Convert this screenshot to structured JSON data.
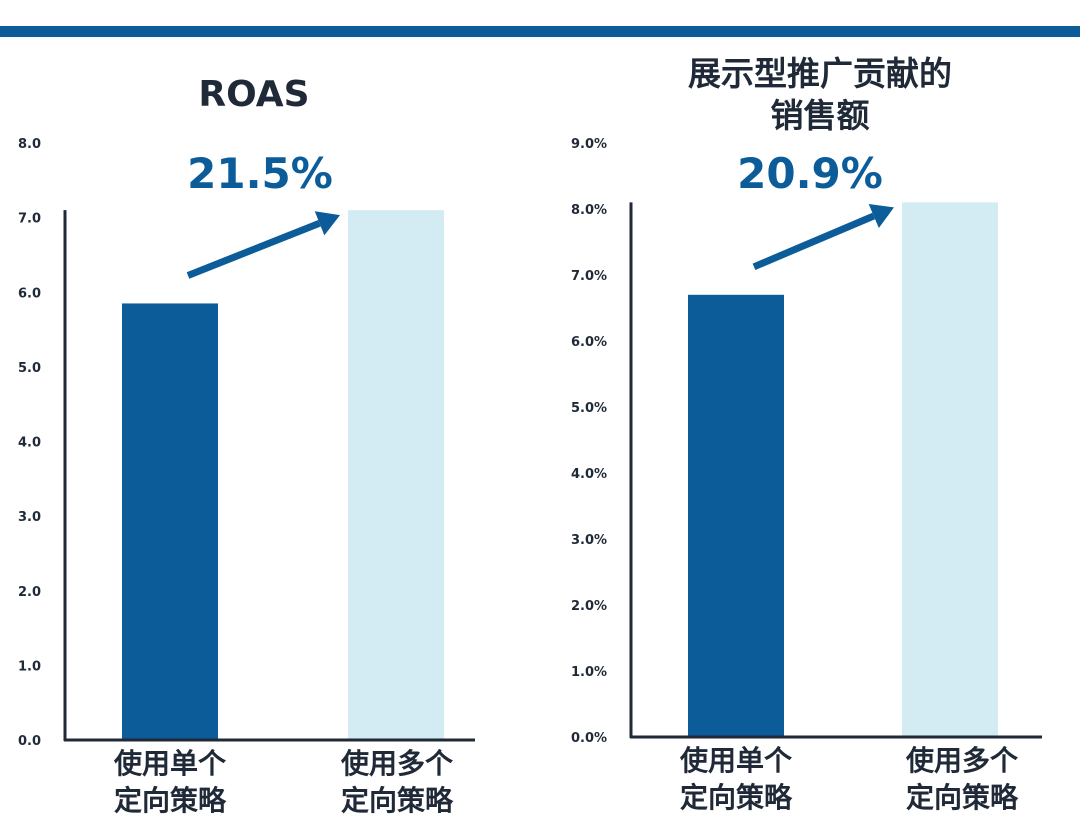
{
  "colors": {
    "primary": "#0b5c99",
    "light": "#d3ebf3",
    "axis": "#1f2937",
    "topbar": "#0b5c99"
  },
  "chart_data": [
    {
      "type": "bar",
      "title": "ROAS",
      "categories": [
        [
          "使用单个",
          "定向策略"
        ],
        [
          "使用多个",
          "定向策略"
        ]
      ],
      "values": [
        5.85,
        7.1
      ],
      "yticks": [
        "0.0",
        "1.0",
        "2.0",
        "3.0",
        "4.0",
        "5.0",
        "6.0",
        "7.0",
        "8.0"
      ],
      "ylim": [
        0,
        8
      ],
      "annotation": "21.5%",
      "grid": false,
      "bar_colors": [
        "#0b5c99",
        "#d3ebf3"
      ]
    },
    {
      "type": "bar",
      "title": [
        "展示型推广贡献的",
        "销售额"
      ],
      "categories": [
        [
          "使用单个",
          "定向策略"
        ],
        [
          "使用多个",
          "定向策略"
        ]
      ],
      "values": [
        6.7,
        8.1
      ],
      "yticks": [
        "0.0%",
        "1.0%",
        "2.0%",
        "3.0%",
        "4.0%",
        "5.0%",
        "6.0%",
        "7.0%",
        "8.0%",
        "9.0%"
      ],
      "ylim": [
        0,
        9
      ],
      "annotation": "20.9%",
      "grid": false,
      "bar_colors": [
        "#0b5c99",
        "#d3ebf3"
      ]
    }
  ]
}
